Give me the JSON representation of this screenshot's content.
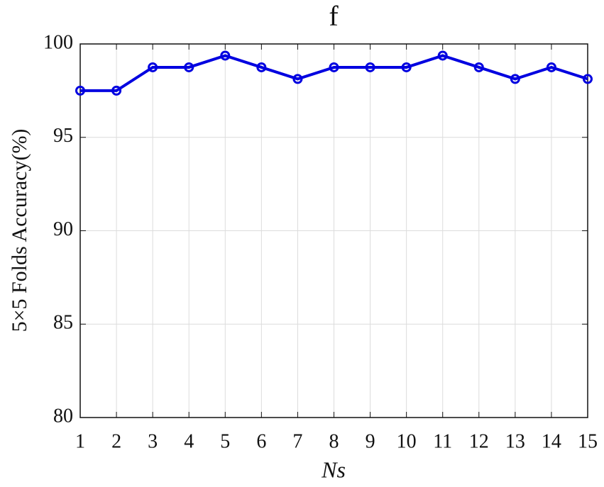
{
  "chart_data": {
    "type": "line",
    "title": "f",
    "x_label": "Ns",
    "y_label": "5×5 Folds Accuracy(%)",
    "x": [
      1,
      2,
      3,
      4,
      5,
      6,
      7,
      8,
      9,
      10,
      11,
      12,
      13,
      14,
      15
    ],
    "series": [
      {
        "color": "#0000e0",
        "values": [
          97.5,
          97.5,
          98.75,
          98.75,
          99.375,
          98.75,
          98.125,
          98.75,
          98.75,
          98.75,
          99.375,
          98.75,
          98.125,
          98.75,
          98.125
        ]
      }
    ],
    "xlim": [
      1,
      15
    ],
    "xticks": [
      1,
      2,
      3,
      4,
      5,
      6,
      7,
      8,
      9,
      10,
      11,
      12,
      13,
      14,
      15
    ],
    "ylim": [
      80,
      100
    ],
    "yticks": [
      80,
      85,
      90,
      95,
      100
    ],
    "grid": true
  }
}
